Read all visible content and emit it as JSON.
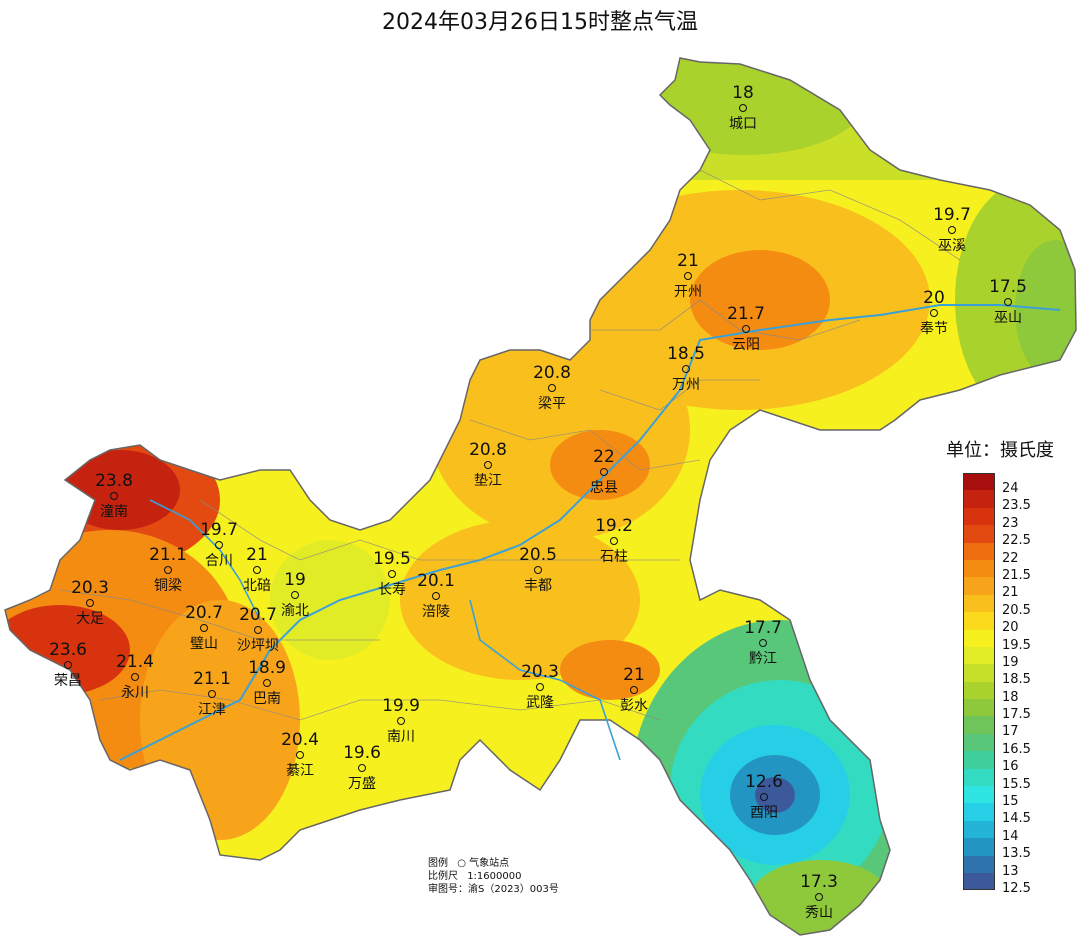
{
  "title": "2024年03月26日15时整点气温",
  "unit_label": "单位：摄氏度",
  "legend": {
    "labels": [
      "24",
      "23.5",
      "23",
      "22.5",
      "22",
      "21.5",
      "21",
      "20.5",
      "20",
      "19.5",
      "19",
      "18.5",
      "18",
      "17.5",
      "17",
      "16.5",
      "16",
      "15.5",
      "15",
      "14.5",
      "14",
      "13.5",
      "13",
      "12.5"
    ],
    "colors": [
      "#a90e0e",
      "#c5230f",
      "#d8330f",
      "#e34a12",
      "#ef6f10",
      "#f58c12",
      "#f7a41a",
      "#f9c01d",
      "#fbd91d",
      "#f7f01f",
      "#e2ec26",
      "#c6df28",
      "#aad22d",
      "#8ec83b",
      "#6fc55a",
      "#58c779",
      "#3fcf9c",
      "#33dcc0",
      "#2fe5e3",
      "#26cfe5",
      "#23b4d7",
      "#2395c2",
      "#2f73ad",
      "#3c5a9b"
    ]
  },
  "stations": [
    {
      "name": "城口",
      "value": "18"
    },
    {
      "name": "巫溪",
      "value": "19.7"
    },
    {
      "name": "开州",
      "value": "21"
    },
    {
      "name": "巫山",
      "value": "17.5"
    },
    {
      "name": "奉节",
      "value": "20"
    },
    {
      "name": "云阳",
      "value": "21.7"
    },
    {
      "name": "万州",
      "value": "18.5"
    },
    {
      "name": "梁平",
      "value": "20.8"
    },
    {
      "name": "垫江",
      "value": "20.8"
    },
    {
      "name": "忠县",
      "value": "22"
    },
    {
      "name": "潼南",
      "value": "23.8"
    },
    {
      "name": "合川",
      "value": "19.7"
    },
    {
      "name": "铜梁",
      "value": "21.1"
    },
    {
      "name": "北碚",
      "value": "21"
    },
    {
      "name": "渝北",
      "value": "19"
    },
    {
      "name": "长寿",
      "value": "19.5"
    },
    {
      "name": "涪陵",
      "value": "20.1"
    },
    {
      "name": "丰都",
      "value": "20.5"
    },
    {
      "name": "石柱",
      "value": "19.2"
    },
    {
      "name": "大足",
      "value": "20.3"
    },
    {
      "name": "璧山",
      "value": "20.7"
    },
    {
      "name": "沙坪坝",
      "value": "20.7"
    },
    {
      "name": "荣昌",
      "value": "23.6"
    },
    {
      "name": "永川",
      "value": "21.4"
    },
    {
      "name": "巴南",
      "value": "18.9"
    },
    {
      "name": "江津",
      "value": "21.1"
    },
    {
      "name": "黔江",
      "value": "17.7"
    },
    {
      "name": "武隆",
      "value": "20.3"
    },
    {
      "name": "彭水",
      "value": "21"
    },
    {
      "name": "南川",
      "value": "19.9"
    },
    {
      "name": "綦江",
      "value": "20.4"
    },
    {
      "name": "万盛",
      "value": "19.6"
    },
    {
      "name": "酉阳",
      "value": "12.6"
    },
    {
      "name": "秀山",
      "value": "17.3"
    }
  ],
  "info": {
    "legend_label": "图例",
    "legend_item": "气象站点",
    "scale_label": "比例尺",
    "scale_value": "1:1600000",
    "approval": "审图号：渝S（2023）003号"
  }
}
